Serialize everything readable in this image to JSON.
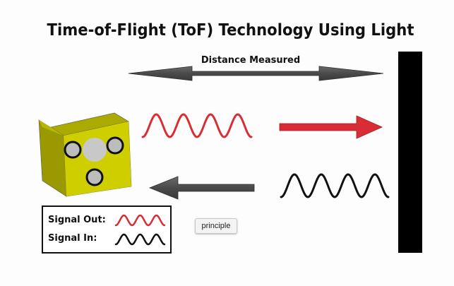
{
  "title": "Time-of-Flight (ToF) Technology Using Light",
  "distance_label": "Distance Measured",
  "legend": {
    "signal_out": "Signal Out:",
    "signal_in": "Signal In:"
  },
  "tooltip": "principle",
  "colors": {
    "signal_out": "#d92d35",
    "signal_in": "#111111",
    "sensor_body": "#d2d200",
    "wall": "#000000",
    "distance_arrow": "#555555"
  }
}
